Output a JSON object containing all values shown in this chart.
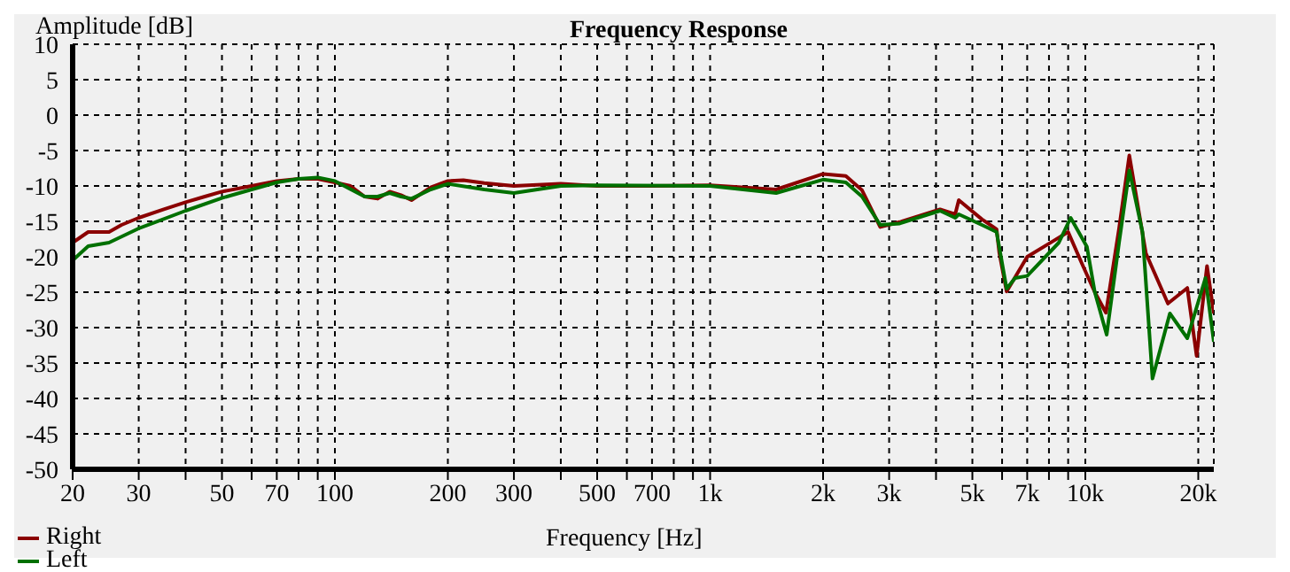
{
  "chart_data": {
    "type": "line",
    "title": "Frequency Response",
    "xlabel": "Frequency [Hz]",
    "ylabel": "Amplitude [dB]",
    "log": "x",
    "grid": true,
    "legend": "bottom left",
    "line_style": "solid",
    "marker": "none",
    "xlim": [
      20,
      22000
    ],
    "ylim": [
      -50,
      10
    ],
    "xticks": [
      20,
      30,
      {
        "value": 40,
        "label": null
      },
      50,
      {
        "value": 60,
        "label": null
      },
      70,
      {
        "value": 80,
        "label": null
      },
      {
        "value": 90,
        "label": null
      },
      100,
      200,
      300,
      {
        "value": 400,
        "label": null
      },
      500,
      {
        "value": 600,
        "label": null
      },
      700,
      {
        "value": 800,
        "label": null
      },
      {
        "value": 900,
        "label": null
      },
      {
        "value": 1000,
        "label": "1k"
      },
      {
        "value": 2000,
        "label": "2k"
      },
      {
        "value": 3000,
        "label": "3k"
      },
      {
        "value": 4000,
        "label": null
      },
      {
        "value": 5000,
        "label": "5k"
      },
      {
        "value": 6000,
        "label": null
      },
      {
        "value": 7000,
        "label": "7k"
      },
      {
        "value": 8000,
        "label": null
      },
      {
        "value": 9000,
        "label": null
      },
      {
        "value": 10000,
        "label": "10k"
      },
      {
        "value": 20000,
        "label": "20k"
      }
    ],
    "yticks": [
      10,
      5,
      0,
      -5,
      -10,
      -15,
      -20,
      -25,
      -30,
      -35,
      -40,
      -45,
      -50
    ],
    "series": [
      {
        "name": "Right",
        "color": "#8b0000",
        "x": [
          20,
          22,
          25,
          27,
          30,
          35,
          40,
          45,
          50,
          60,
          70,
          80,
          90,
          100,
          110,
          120,
          130,
          140,
          150,
          160,
          180,
          200,
          220,
          250,
          300,
          400,
          500,
          700,
          1000,
          1500,
          2000,
          2300,
          2540,
          2840,
          3200,
          4100,
          4500,
          4600,
          5300,
          5800,
          5900,
          6170,
          7000,
          8200,
          9000,
          9800,
          10600,
          11350,
          12300,
          13100,
          14500,
          16600,
          18700,
          19800,
          21100,
          22000
        ],
        "values": [
          -18,
          -16.5,
          -16.5,
          -15.5,
          -14.5,
          -13.3,
          -12.3,
          -11.5,
          -10.8,
          -10,
          -9.3,
          -9,
          -9,
          -9.5,
          -10,
          -11.5,
          -11.8,
          -10.8,
          -11.3,
          -12,
          -10.2,
          -9.3,
          -9.2,
          -9.6,
          -10,
          -9.7,
          -10,
          -10,
          -9.9,
          -10.5,
          -8.3,
          -8.6,
          -10.6,
          -15.8,
          -15.1,
          -13.3,
          -14,
          -12,
          -14.7,
          -16.1,
          -19.5,
          -24.9,
          -20,
          -17.8,
          -16.5,
          -21,
          -25,
          -27.9,
          -16,
          -5.7,
          -19.5,
          -26.6,
          -24.4,
          -34,
          -21.3,
          -28
        ]
      },
      {
        "name": "Left",
        "color": "#007000",
        "x": [
          20,
          22,
          25,
          30,
          40,
          50,
          60,
          70,
          80,
          90,
          100,
          120,
          130,
          140,
          150,
          160,
          180,
          200,
          250,
          300,
          400,
          500,
          1000,
          1500,
          2000,
          2300,
          2540,
          2840,
          3200,
          4100,
          4500,
          4600,
          5300,
          5800,
          6170,
          6500,
          7000,
          8500,
          9140,
          10100,
          10600,
          11400,
          12300,
          13100,
          14200,
          15100,
          16800,
          18700,
          20900,
          22000
        ],
        "values": [
          -20.5,
          -18.5,
          -18,
          -16,
          -13.5,
          -11.7,
          -10.5,
          -9.5,
          -9,
          -8.8,
          -9.3,
          -11.5,
          -11.5,
          -11,
          -11.5,
          -11.8,
          -10.5,
          -9.7,
          -10.5,
          -11,
          -10,
          -9.9,
          -10,
          -11,
          -9.1,
          -9.5,
          -11.5,
          -15.5,
          -15.3,
          -13.5,
          -14.5,
          -14,
          -15.5,
          -16.5,
          -24.5,
          -23,
          -22.7,
          -18,
          -14.5,
          -18.6,
          -25,
          -31,
          -18,
          -7.8,
          -16.5,
          -37.2,
          -28,
          -31.5,
          -23,
          -32
        ]
      }
    ]
  }
}
